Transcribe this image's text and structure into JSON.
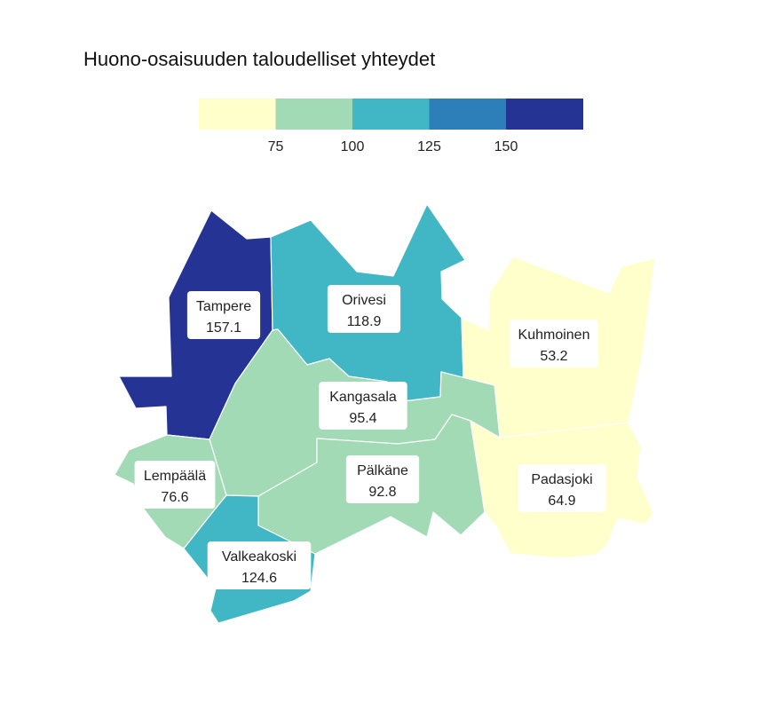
{
  "title": "Huono-osaisuuden taloudelliset yhteydet",
  "legend": {
    "colors": [
      "#ffffcc",
      "#a1dab4",
      "#41b6c4",
      "#2c7fb8",
      "#253494"
    ],
    "breaks": [
      75,
      100,
      125,
      150
    ],
    "tick_labels": [
      "75",
      "100",
      "125",
      "150"
    ]
  },
  "regions": [
    {
      "id": "tampere",
      "name": "Tampere",
      "value": "157.1",
      "color": "#253494"
    },
    {
      "id": "orivesi",
      "name": "Orivesi",
      "value": "118.9",
      "color": "#41b6c4"
    },
    {
      "id": "kuhmoinen",
      "name": "Kuhmoinen",
      "value": "53.2",
      "color": "#ffffcc"
    },
    {
      "id": "kangasala",
      "name": "Kangasala",
      "value": "95.4",
      "color": "#a1dab4"
    },
    {
      "id": "lempaala",
      "name": "Lempäälä",
      "value": "76.6",
      "color": "#a1dab4"
    },
    {
      "id": "palkane",
      "name": "Pälkäne",
      "value": "92.8",
      "color": "#a1dab4"
    },
    {
      "id": "padasjoki",
      "name": "Padasjoki",
      "value": "64.9",
      "color": "#ffffcc"
    },
    {
      "id": "valkeakoski",
      "name": "Valkeakoski",
      "value": "124.6",
      "color": "#41b6c4"
    }
  ]
}
